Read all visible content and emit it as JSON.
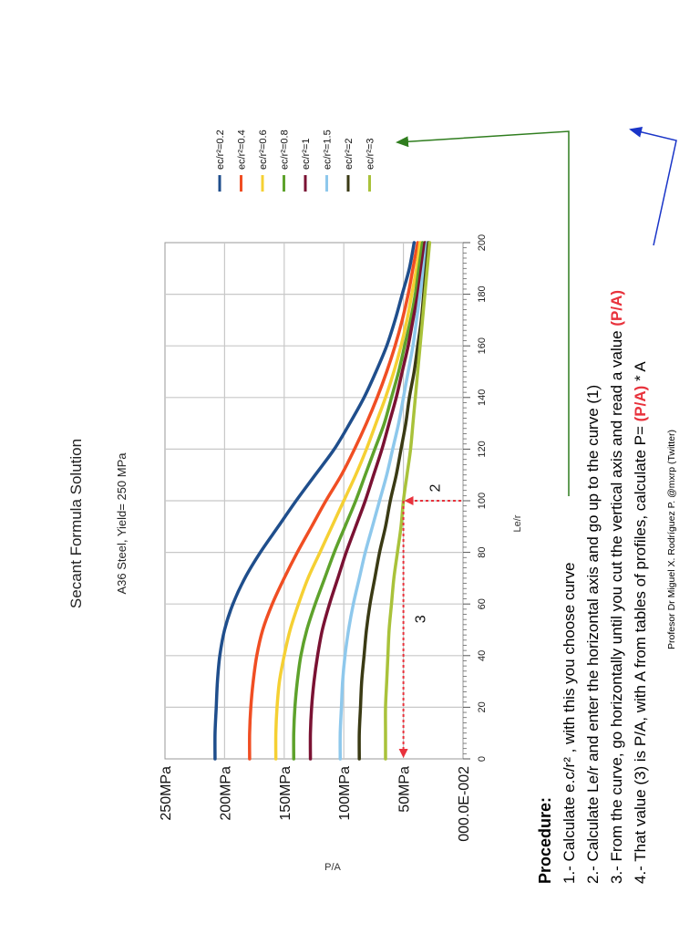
{
  "chart_data": {
    "type": "line",
    "title": "Secant Formula Solution",
    "subtitle": "A36 Steel, Yield= 250 MPa",
    "xlabel": "Le/r",
    "ylabel": "P/A",
    "xlim": [
      0,
      200
    ],
    "ylim": [
      0,
      250
    ],
    "x_ticks": [
      "0",
      "20",
      "40",
      "60",
      "80",
      "100",
      "120",
      "140",
      "160",
      "180",
      "200"
    ],
    "y_ticks": [
      "000.0E-002",
      "50MPa",
      "100MPa",
      "150MPa",
      "200MPa",
      "250MPa"
    ],
    "grid": true,
    "legend_position": "right",
    "x": [
      0,
      10,
      20,
      30,
      40,
      50,
      60,
      70,
      80,
      90,
      100,
      110,
      120,
      130,
      140,
      150,
      160,
      170,
      180,
      190,
      200
    ],
    "series": [
      {
        "name": "ec/r²=0.2",
        "color": "#1f4e8c",
        "values": [
          208,
          208,
          207,
          206,
          204,
          200,
          193,
          183,
          170,
          155,
          140,
          124,
          108,
          95,
          83,
          73,
          64,
          57,
          51,
          45,
          41
        ]
      },
      {
        "name": "ec/r²=0.4",
        "color": "#f04e23",
        "values": [
          179,
          179,
          178,
          176,
          173,
          168,
          160,
          150,
          139,
          127,
          115,
          102,
          91,
          81,
          72,
          64,
          57,
          51,
          46,
          42,
          38
        ]
      },
      {
        "name": "ec/r²=0.6",
        "color": "#f5d033",
        "values": [
          157,
          157,
          156,
          154,
          150,
          145,
          138,
          130,
          120,
          110,
          100,
          90,
          81,
          73,
          65,
          58,
          52,
          47,
          43,
          39,
          36
        ]
      },
      {
        "name": "ec/r²=0.8",
        "color": "#5ea22c",
        "values": [
          142,
          142,
          141,
          139,
          136,
          131,
          124,
          116,
          108,
          99,
          90,
          82,
          74,
          66,
          60,
          54,
          49,
          44,
          40,
          37,
          34
        ]
      },
      {
        "name": "ec/r²=1",
        "color": "#7a1233",
        "values": [
          128,
          128,
          127,
          125,
          122,
          118,
          112,
          105,
          98,
          90,
          82,
          75,
          68,
          62,
          56,
          51,
          46,
          42,
          38,
          35,
          32
        ]
      },
      {
        "name": "ec/r²=1.5",
        "color": "#8ec8ec",
        "values": [
          103,
          103,
          102,
          101,
          99,
          96,
          92,
          87,
          82,
          76,
          70,
          64,
          59,
          54,
          50,
          46,
          42,
          39,
          36,
          33,
          30
        ]
      },
      {
        "name": "ec/r²=2",
        "color": "#3a3a14",
        "values": [
          87,
          87,
          86,
          85,
          83,
          81,
          78,
          74,
          70,
          65,
          61,
          56,
          52,
          48,
          45,
          41,
          38,
          35,
          33,
          31,
          29
        ]
      },
      {
        "name": "ec/r²=3",
        "color": "#a9c23a",
        "values": [
          65,
          65,
          65,
          64,
          63,
          62,
          60,
          58,
          55,
          52,
          50,
          47,
          44,
          42,
          40,
          38,
          36,
          34,
          32,
          30,
          28
        ]
      }
    ],
    "annotations": [
      {
        "label": "2",
        "x": 100,
        "y": 50
      },
      {
        "label": "3",
        "x": 40,
        "y": 50
      }
    ]
  },
  "procedure": {
    "heading": "Procedure:",
    "steps": [
      "1.- Calculate e.c/r² , with this you choose curve",
      "2.- Calculate Le/r and enter the horizontal axis and go up to the curve (1)",
      "3.- From the curve, go horizontally until you cut the vertical axis and read a value (P/A)",
      "4.- That value (3) is P/A, with A from tables of profiles, calculate P= (P/A) * A"
    ],
    "credit": "Profesor Dr Miguel X. Rodríguez P.   @mxrp  (Twitter)"
  },
  "colors": {
    "annotation_red": "#e8323c",
    "pointer_green": "#2f7d1e",
    "pointer_blue": "#1a35c8",
    "grid": "#c8c8c8"
  }
}
